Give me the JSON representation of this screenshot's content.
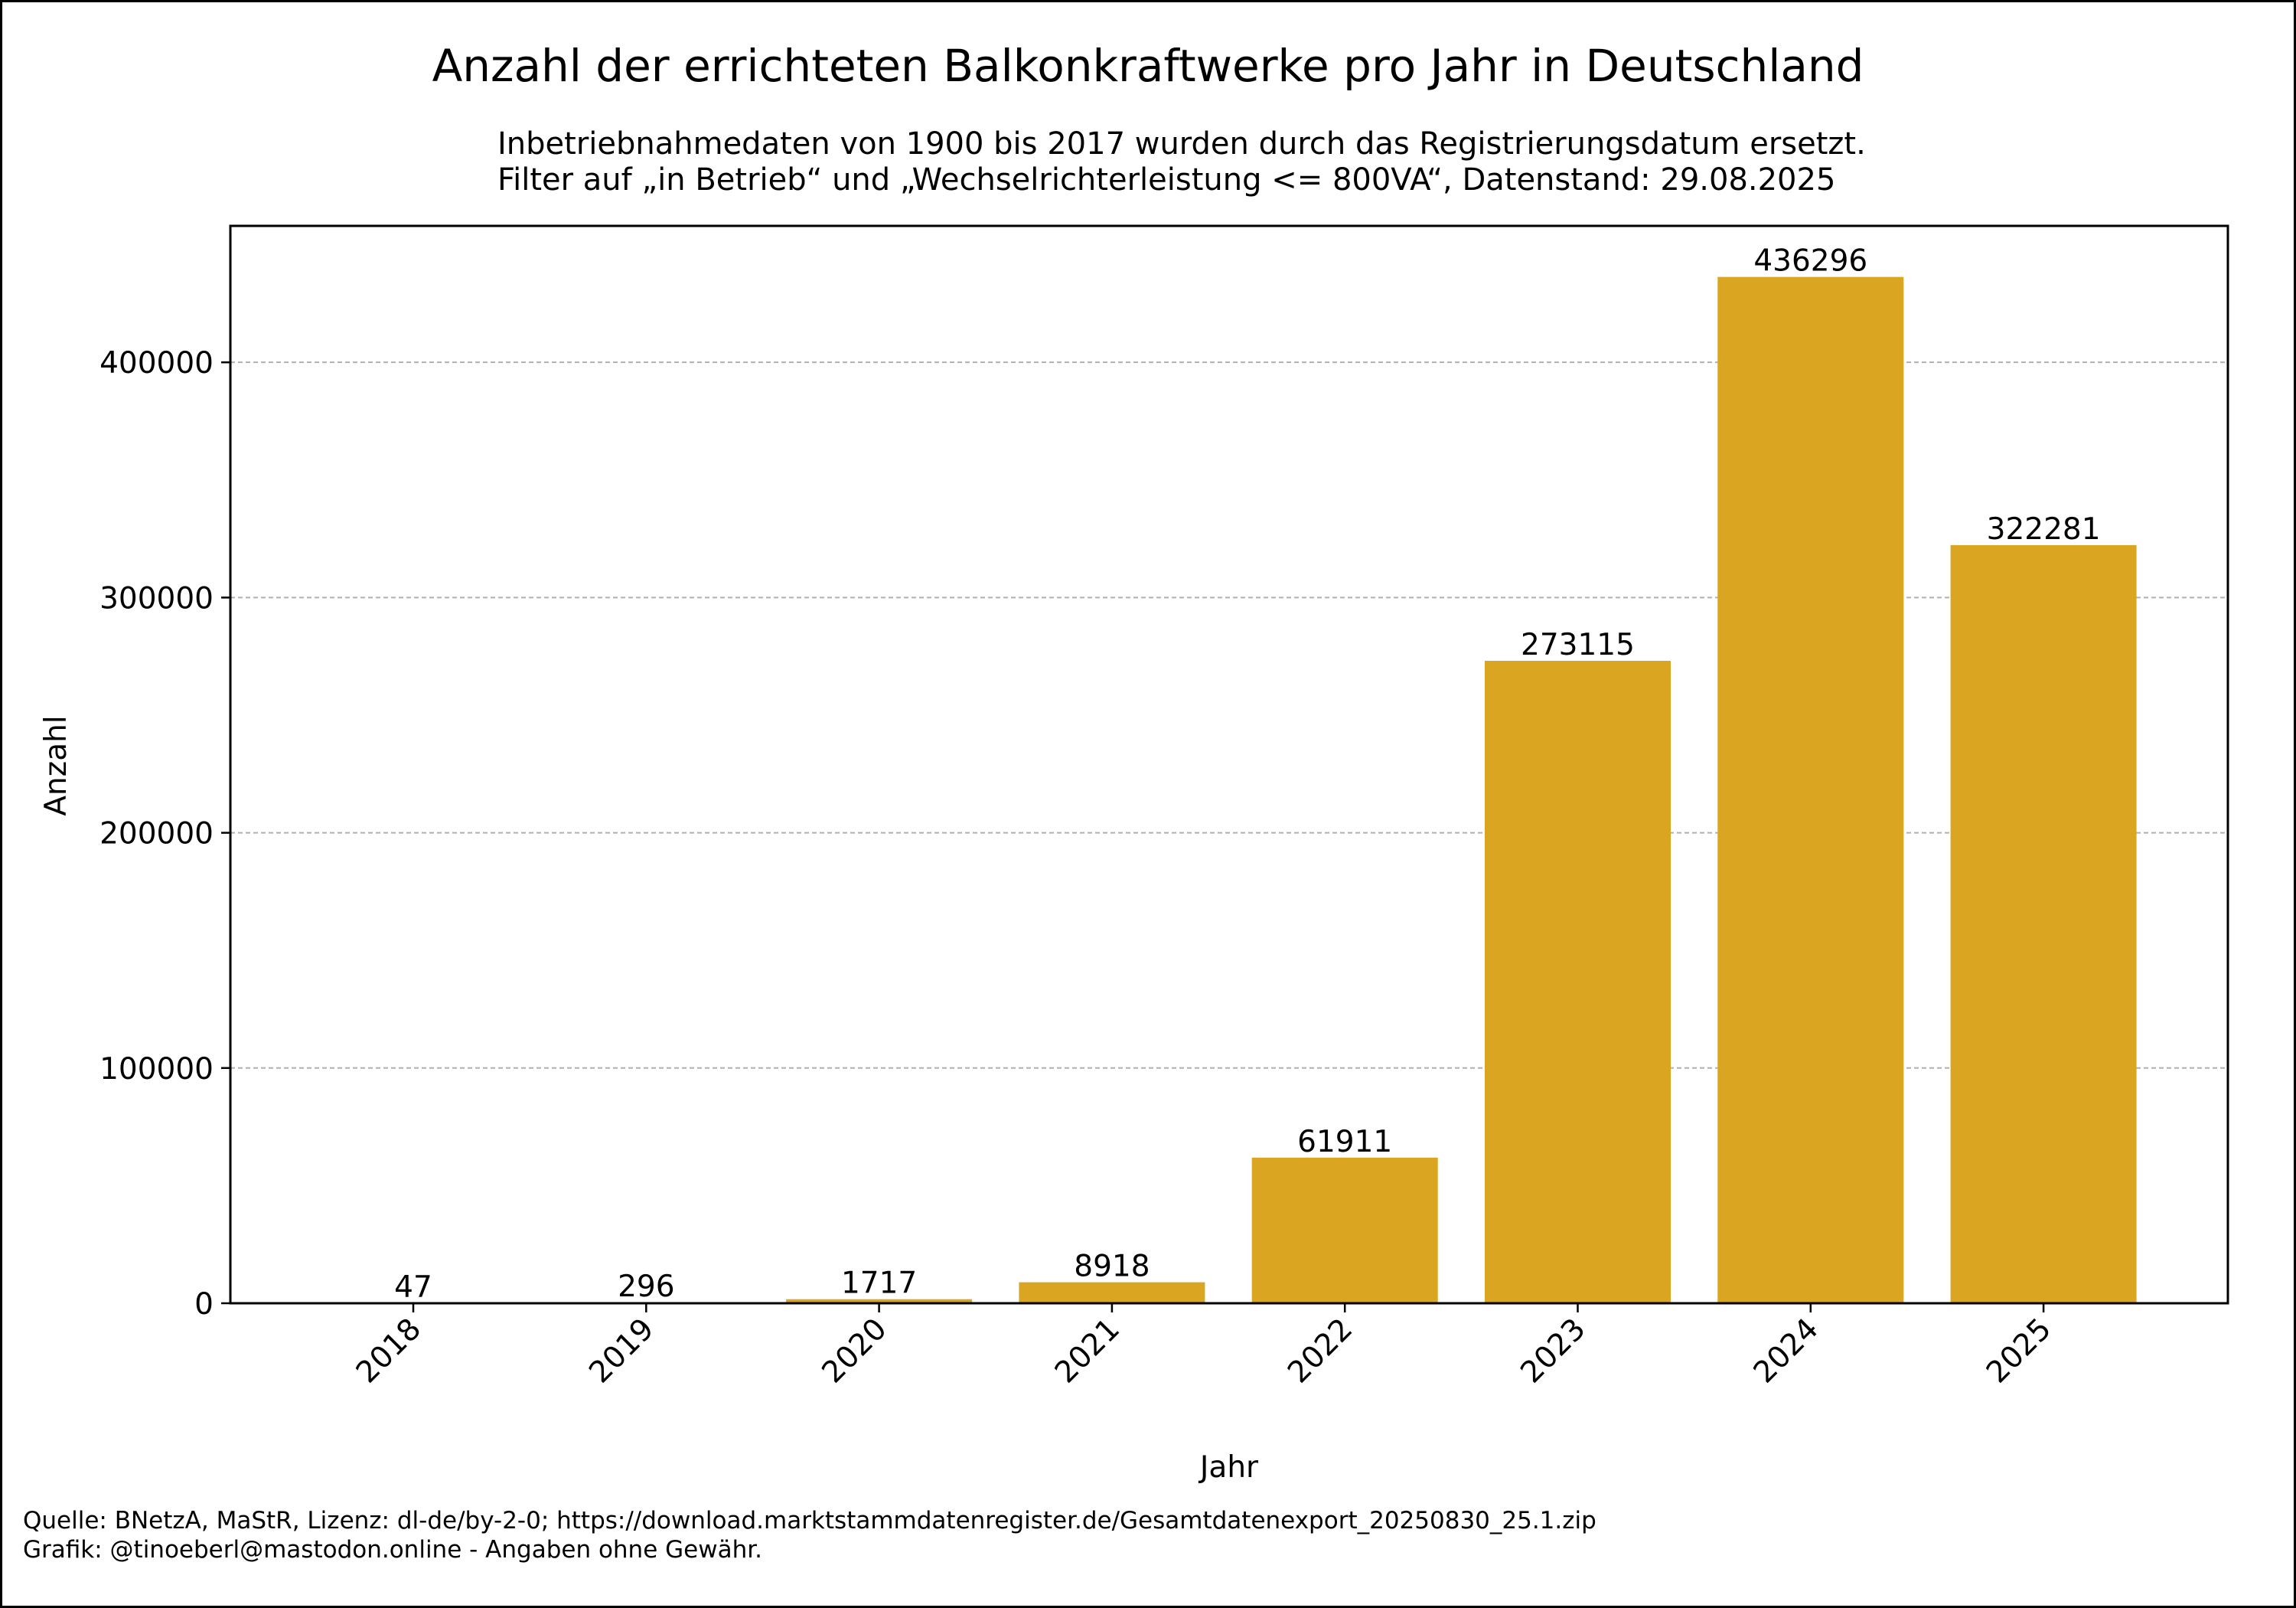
{
  "chart_data": {
    "type": "bar",
    "title": "Anzahl der errichteten Balkonkraftwerke pro Jahr in Deutschland",
    "subtitle_lines": [
      "Inbetriebnahmedaten von 1900 bis 2017 wurden durch das Registrierungsdatum ersetzt.",
      "Filter auf „in Betrieb“ und „Wechselrichterleistung <= 800VA“, Datenstand: 29.08.2025"
    ],
    "xlabel": "Jahr",
    "ylabel": "Anzahl",
    "categories": [
      "2018",
      "2019",
      "2020",
      "2021",
      "2022",
      "2023",
      "2024",
      "2025"
    ],
    "values": [
      47,
      296,
      1717,
      8918,
      61911,
      273115,
      436296,
      322281
    ],
    "data_labels": [
      "47",
      "296",
      "1717",
      "8918",
      "61911",
      "273115",
      "436296",
      "322281"
    ],
    "ylim": [
      0,
      458000
    ],
    "yticks": [
      0,
      100000,
      200000,
      300000,
      400000
    ],
    "ytick_labels": [
      "0",
      "100000",
      "200000",
      "300000",
      "400000"
    ],
    "grid": "y-dashed",
    "bar_color": "#DAA520",
    "xtick_rotation": 45
  },
  "footer": {
    "source": "Quelle: BNetzA, MaStR, Lizenz: dl-de/by-2-0; https://download.marktstammdatenregister.de/Gesamtdatenexport_20250830_25.1.zip",
    "credit": "Grafik: @tinoeberl@mastodon.online - Angaben ohne Gewähr."
  }
}
